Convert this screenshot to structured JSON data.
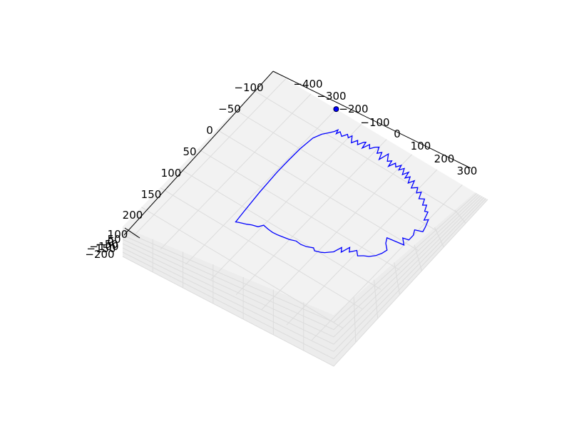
{
  "chart_data": {
    "type": "line3d",
    "x_axis": {
      "ticks": [
        "−400",
        "−300",
        "−200",
        "−100",
        "0",
        "100",
        "200",
        "300"
      ]
    },
    "y_axis": {
      "ticks": [
        "−100",
        "−50",
        "0",
        "50",
        "100",
        "150",
        "200"
      ]
    },
    "z_axis": {
      "ticks": [
        "100",
        "50",
        "0",
        "−50",
        "−100",
        "−150",
        "−200"
      ]
    },
    "series": [
      {
        "color": "#0000ff",
        "points": [
          [
            -175,
            -95
          ],
          [
            -160,
            -105
          ],
          [
            -150,
            -112
          ],
          [
            -145,
            -118
          ],
          [
            -140,
            -110
          ],
          [
            -135,
            -117
          ],
          [
            -120,
            -111
          ],
          [
            -110,
            -120
          ],
          [
            -100,
            -115
          ],
          [
            -95,
            -122
          ],
          [
            -80,
            -110
          ],
          [
            -70,
            -120
          ],
          [
            -60,
            -113
          ],
          [
            -50,
            -123
          ],
          [
            -45,
            -125
          ],
          [
            -40,
            -112
          ],
          [
            -30,
            -125
          ],
          [
            -20,
            -118
          ],
          [
            -10,
            -126
          ],
          [
            0,
            -130
          ],
          [
            10,
            -118
          ],
          [
            20,
            -124
          ],
          [
            30,
            -110
          ],
          [
            40,
            -128
          ],
          [
            55,
            -115
          ],
          [
            65,
            -120
          ],
          [
            70,
            -108
          ],
          [
            80,
            -120
          ],
          [
            90,
            -114
          ],
          [
            100,
            -122
          ],
          [
            105,
            -112
          ],
          [
            115,
            -120
          ],
          [
            125,
            -108
          ],
          [
            135,
            -118
          ],
          [
            140,
            -105
          ],
          [
            150,
            -112
          ],
          [
            160,
            -100
          ],
          [
            170,
            -110
          ],
          [
            180,
            -95
          ],
          [
            195,
            -102
          ],
          [
            205,
            -92
          ],
          [
            215,
            -98
          ],
          [
            225,
            -85
          ],
          [
            240,
            -90
          ],
          [
            250,
            -78
          ],
          [
            260,
            -82
          ],
          [
            270,
            -70
          ],
          [
            280,
            -72
          ],
          [
            290,
            -55
          ],
          [
            300,
            -60
          ],
          [
            310,
            -45
          ],
          [
            315,
            -35
          ],
          [
            290,
            -30
          ],
          [
            300,
            -20
          ],
          [
            300,
            -8
          ],
          [
            280,
            -5
          ],
          [
            300,
            5
          ],
          [
            240,
            10
          ],
          [
            250,
            20
          ],
          [
            270,
            30
          ],
          [
            265,
            40
          ],
          [
            255,
            50
          ],
          [
            240,
            58
          ],
          [
            225,
            62
          ],
          [
            210,
            68
          ],
          [
            195,
            60
          ],
          [
            180,
            70
          ],
          [
            170,
            62
          ],
          [
            160,
            78
          ],
          [
            150,
            70
          ],
          [
            140,
            85
          ],
          [
            130,
            90
          ],
          [
            120,
            95
          ],
          [
            110,
            98
          ],
          [
            100,
            100
          ],
          [
            90,
            102
          ],
          [
            80,
            98
          ],
          [
            60,
            103
          ],
          [
            40,
            105
          ],
          [
            20,
            104
          ],
          [
            0,
            108
          ],
          [
            -20,
            110
          ],
          [
            -40,
            112
          ],
          [
            -60,
            113
          ],
          [
            -80,
            112
          ],
          [
            -100,
            110
          ],
          [
            -110,
            118
          ],
          [
            -130,
            121
          ],
          [
            -145,
            125
          ],
          [
            -160,
            128
          ],
          [
            -170,
            130
          ],
          [
            -178,
            132
          ],
          [
            -182,
            110
          ],
          [
            -190,
            60
          ],
          [
            -195,
            10
          ],
          [
            -195,
            -20
          ],
          [
            -194,
            -50
          ],
          [
            -188,
            -80
          ],
          [
            -175,
            -95
          ]
        ]
      }
    ],
    "marker": {
      "x": -200,
      "y": -150,
      "color": "#0000ff"
    }
  }
}
